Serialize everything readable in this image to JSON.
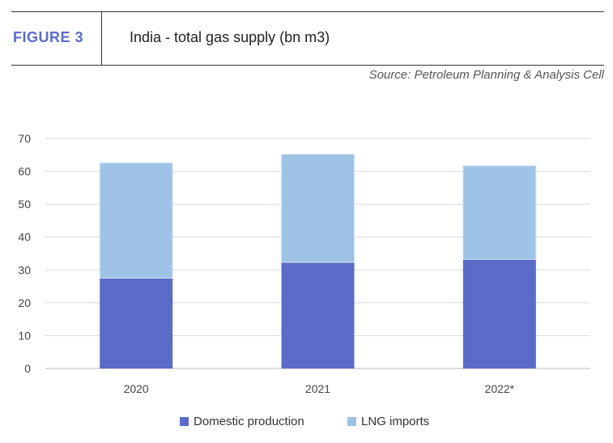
{
  "header": {
    "figure_label": "FIGURE 3",
    "title": "India - total gas supply (bn m3)",
    "source": "Source: Petroleum Planning & Analysis Cell"
  },
  "chart_data": {
    "type": "bar",
    "stacked": true,
    "categories": [
      "2020",
      "2021",
      "2022*"
    ],
    "series": [
      {
        "name": "Domestic production",
        "values": [
          27.5,
          32.3,
          33.2
        ],
        "color": "#5b6bc8"
      },
      {
        "name": "LNG imports",
        "values": [
          35.1,
          32.9,
          28.5
        ],
        "color": "#9ec3e6"
      }
    ],
    "ylim": [
      0,
      70
    ],
    "yticks": [
      "0",
      "10",
      "20",
      "30",
      "40",
      "50",
      "60",
      "70"
    ],
    "grid": true,
    "legend": "bottom"
  }
}
